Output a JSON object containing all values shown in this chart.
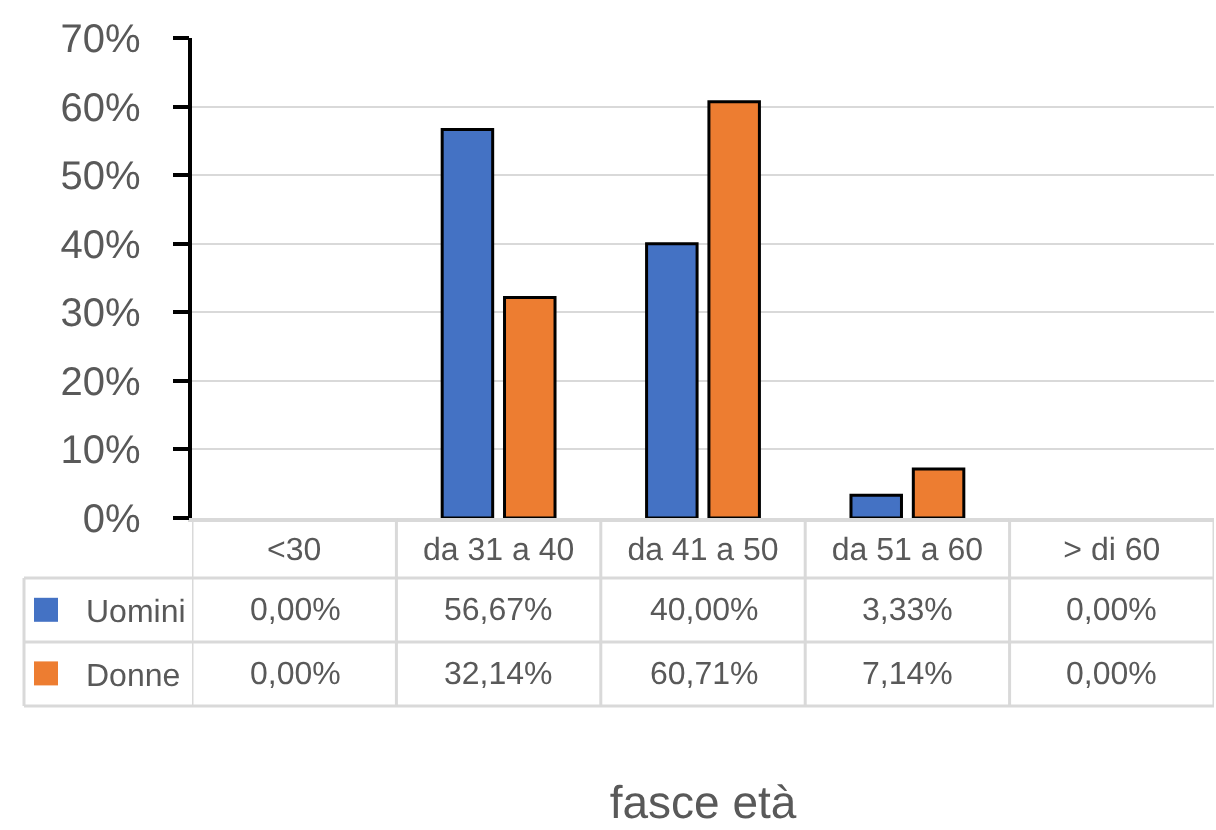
{
  "chart_data": {
    "type": "bar",
    "xlabel": "fasce età",
    "categories": [
      "<30",
      "da 31 a 40",
      "da 41 a 50",
      "da 51 a 60",
      "> di 60"
    ],
    "series": [
      {
        "name": "Uomini",
        "color": "#4472c4",
        "values": [
          0,
          56.67,
          40,
          3.33,
          0
        ],
        "value_labels": [
          "0,00%",
          "56,67%",
          "40,00%",
          "3,33%",
          "0,00%"
        ]
      },
      {
        "name": "Donne",
        "color": "#ed7d31",
        "values": [
          0,
          32.14,
          60.71,
          7.14,
          0
        ],
        "value_labels": [
          "0,00%",
          "32,14%",
          "60,71%",
          "7,14%",
          "0,00%"
        ]
      }
    ],
    "ylim": [
      0,
      70
    ],
    "yticks": [
      {
        "value": 0,
        "label": "0%"
      },
      {
        "value": 10,
        "label": "10%"
      },
      {
        "value": 20,
        "label": "20%"
      },
      {
        "value": 30,
        "label": "30%"
      },
      {
        "value": 40,
        "label": "40%"
      },
      {
        "value": 50,
        "label": "50%"
      },
      {
        "value": 60,
        "label": "60%"
      },
      {
        "value": 70,
        "label": "70%"
      }
    ],
    "grid": "y",
    "legend": "bottom left"
  }
}
